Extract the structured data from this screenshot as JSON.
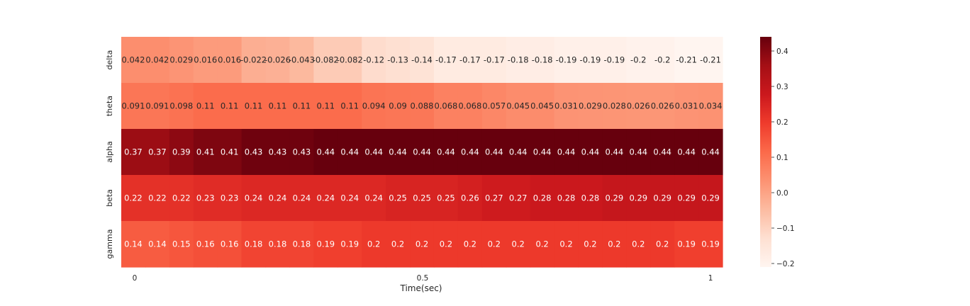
{
  "chart_data": {
    "type": "heatmap",
    "title": "",
    "xlabel": "Time(sec)",
    "ylabel": "",
    "rows": [
      "delta",
      "theta",
      "alpha",
      "beta",
      "gamma"
    ],
    "x_ticks": [
      {
        "label": "0",
        "value": 0
      },
      {
        "label": "0.5",
        "value": 0.5
      },
      {
        "label": "1",
        "value": 1
      }
    ],
    "value_range": [
      -0.21,
      0.44
    ],
    "colormap": "Reds",
    "values": [
      [
        0.042,
        0.042,
        0.029,
        0.016,
        0.016,
        -0.022,
        -0.026,
        -0.043,
        -0.082,
        -0.082,
        -0.12,
        -0.13,
        -0.14,
        -0.17,
        -0.17,
        -0.17,
        -0.18,
        -0.18,
        -0.19,
        -0.19,
        -0.19,
        -0.2,
        -0.2,
        -0.21,
        -0.21
      ],
      [
        0.091,
        0.091,
        0.098,
        0.11,
        0.11,
        0.11,
        0.11,
        0.11,
        0.11,
        0.11,
        0.094,
        0.09,
        0.088,
        0.068,
        0.068,
        0.057,
        0.045,
        0.045,
        0.031,
        0.029,
        0.028,
        0.026,
        0.026,
        0.031,
        0.034
      ],
      [
        0.37,
        0.37,
        0.39,
        0.41,
        0.41,
        0.43,
        0.43,
        0.43,
        0.44,
        0.44,
        0.44,
        0.44,
        0.44,
        0.44,
        0.44,
        0.44,
        0.44,
        0.44,
        0.44,
        0.44,
        0.44,
        0.44,
        0.44,
        0.44,
        0.44
      ],
      [
        0.22,
        0.22,
        0.22,
        0.23,
        0.23,
        0.24,
        0.24,
        0.24,
        0.24,
        0.24,
        0.24,
        0.25,
        0.25,
        0.25,
        0.26,
        0.27,
        0.27,
        0.28,
        0.28,
        0.28,
        0.29,
        0.29,
        0.29,
        0.29,
        0.29
      ],
      [
        0.14,
        0.14,
        0.15,
        0.16,
        0.16,
        0.18,
        0.18,
        0.18,
        0.19,
        0.19,
        0.2,
        0.2,
        0.2,
        0.2,
        0.2,
        0.2,
        0.2,
        0.2,
        0.2,
        0.2,
        0.2,
        0.2,
        0.2,
        0.19,
        0.19
      ]
    ],
    "colorbar": {
      "ticks": [
        {
          "label": "0.4",
          "value": 0.4
        },
        {
          "label": "0.3",
          "value": 0.3
        },
        {
          "label": "0.2",
          "value": 0.2
        },
        {
          "label": "0.1",
          "value": 0.1
        },
        {
          "label": "0.0",
          "value": 0.0
        },
        {
          "label": "−0.1",
          "value": -0.1
        },
        {
          "label": "−0.2",
          "value": -0.2
        }
      ]
    },
    "annotations_shown": true,
    "grid": false
  }
}
